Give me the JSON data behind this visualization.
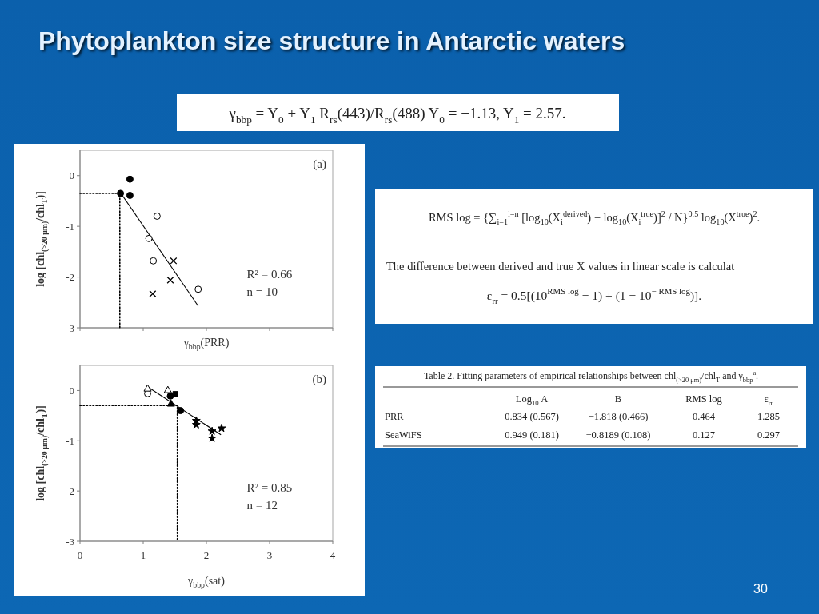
{
  "chart_data": [
    {
      "type": "other",
      "title": "Phytoplankton size structure in Antarctic waters",
      "annotations": [
        "γ$_{bbp}$ = Y$_{0}$ + Y$_{1}$ R$_{rs}$(443)/R$_{rs}$(488) Y$_{0}$ = −1.13,  Y$_{1}$ = 2.57.",
        "30"
      ]
    },
    {
      "type": "scatter",
      "xlabel": "γ$_{bbp}$(PRR)",
      "ylabel": "log [chl$_{(>20 μm)}$/chl$_{T}$)]",
      "xlim": [
        0,
        4
      ],
      "ylim": [
        -3,
        0.5
      ],
      "xticks": [
        {
          "value": 0,
          "label": null
        },
        {
          "value": 1,
          "label": null
        },
        {
          "value": 2,
          "label": null
        },
        {
          "value": 3,
          "label": null
        },
        {
          "value": 4,
          "label": null
        }
      ],
      "yticks": [
        -3,
        -2,
        -1,
        0
      ],
      "tick_labels": "y",
      "annotations": [
        "(a)",
        "R² = 0.66",
        "n = 10"
      ],
      "series": [
        {
          "type": "line",
          "color": "#000000",
          "line_style": "dotted",
          "x": [
            0,
            0.63,
            0.63
          ],
          "values": [
            -0.35,
            -0.35,
            -3
          ]
        },
        {
          "type": "line",
          "color": "#000000",
          "x": [
            0.67,
            1.87
          ],
          "values": [
            -0.39,
            -2.57
          ]
        },
        {
          "color": "#000000",
          "marker": "circle",
          "x": [
            0.64,
            0.79,
            0.79
          ],
          "values": [
            -0.35,
            -0.07,
            -0.39
          ]
        },
        {
          "color": "#ffffff",
          "marker": "circle",
          "x": [
            1.22,
            1.09,
            1.16,
            1.87
          ],
          "values": [
            -0.8,
            -1.24,
            -1.68,
            -2.24
          ]
        },
        {
          "color": "#000000",
          "marker": "cross",
          "x": [
            1.48,
            1.43,
            1.15
          ],
          "values": [
            -1.68,
            -2.06,
            -2.33
          ]
        }
      ]
    },
    {
      "type": "other",
      "annotations": [
        "RMS log = {∑$_{i=1}$$^{i=n}$ [log$_{10}$(X$_{i}$$^{derived}$) − log$_{10}$(X$_{i}$$^{true}$)]$^{2}$ / N}$^{0.5}$ log$_{10}$(X$^{true}$)$^{2}$.",
        "The difference between derived and true X values in linear scale is calculat",
        "ε$_{rr}$ = 0.5[(10$^{RMS log}$ − 1) + (1 − 10$^{− RMS log}$)]."
      ]
    },
    {
      "type": "other",
      "title": "Table 2.  Fitting parameters of empirical relationships between chl$_{(>20 μm)}$/chl$_{T}$ and γ$_{bbp}$$^{a}$.",
      "categories": [
        "Log$_{10}$ A",
        "B",
        "RMS log",
        "ε$_{rr}$"
      ],
      "y_categories": [
        "PRR",
        "SeaWiFS"
      ],
      "cell_labels": [
        [
          "0.834 (0.567)",
          "−1.818 (0.466)",
          "0.464",
          "1.285"
        ],
        [
          "0.949 (0.181)",
          "−0.8189 (0.108)",
          "0.127",
          "0.297"
        ]
      ]
    },
    {
      "type": "scatter",
      "xlabel": "γ$_{bbp}$(sat)",
      "ylabel": "log [chl$_{(>20 μm)}$/chl$_{T}$)]",
      "xlim": [
        0,
        4
      ],
      "ylim": [
        -3,
        0.5
      ],
      "xticks": [
        0,
        1,
        2,
        3,
        4
      ],
      "yticks": [
        -3,
        -2,
        -1,
        0
      ],
      "annotations": [
        "(b)",
        "R² = 0.85",
        "n = 12"
      ],
      "series": [
        {
          "type": "line",
          "color": "#000000",
          "line_style": "dotted",
          "x": [
            0,
            1.54,
            1.54
          ],
          "values": [
            -0.3,
            -0.3,
            -3
          ]
        },
        {
          "type": "line",
          "color": "#000000",
          "x": [
            1.05,
            2.23
          ],
          "values": [
            0.09,
            -0.88
          ]
        },
        {
          "color": "#ffffff",
          "marker": "circle",
          "x": [
            1.07
          ],
          "values": [
            -0.06
          ]
        },
        {
          "color": "#ffffff",
          "marker": "triangle",
          "x": [
            1.07,
            1.39
          ],
          "values": [
            0.03,
            0.0
          ]
        },
        {
          "color": "#000000",
          "marker": "circle",
          "x": [
            1.43,
            1.59
          ],
          "values": [
            -0.11,
            -0.4
          ]
        },
        {
          "color": "#000000",
          "marker": "square",
          "x": [
            1.51
          ],
          "values": [
            -0.07
          ]
        },
        {
          "color": "#000000",
          "marker": "triangle",
          "x": [
            1.44
          ],
          "values": [
            -0.27
          ]
        },
        {
          "color": "#000000",
          "marker": "star",
          "x": [
            1.84,
            1.84,
            2.09,
            2.09,
            2.24
          ],
          "values": [
            -0.6,
            -0.68,
            -0.81,
            -0.95,
            -0.75
          ]
        }
      ]
    }
  ]
}
